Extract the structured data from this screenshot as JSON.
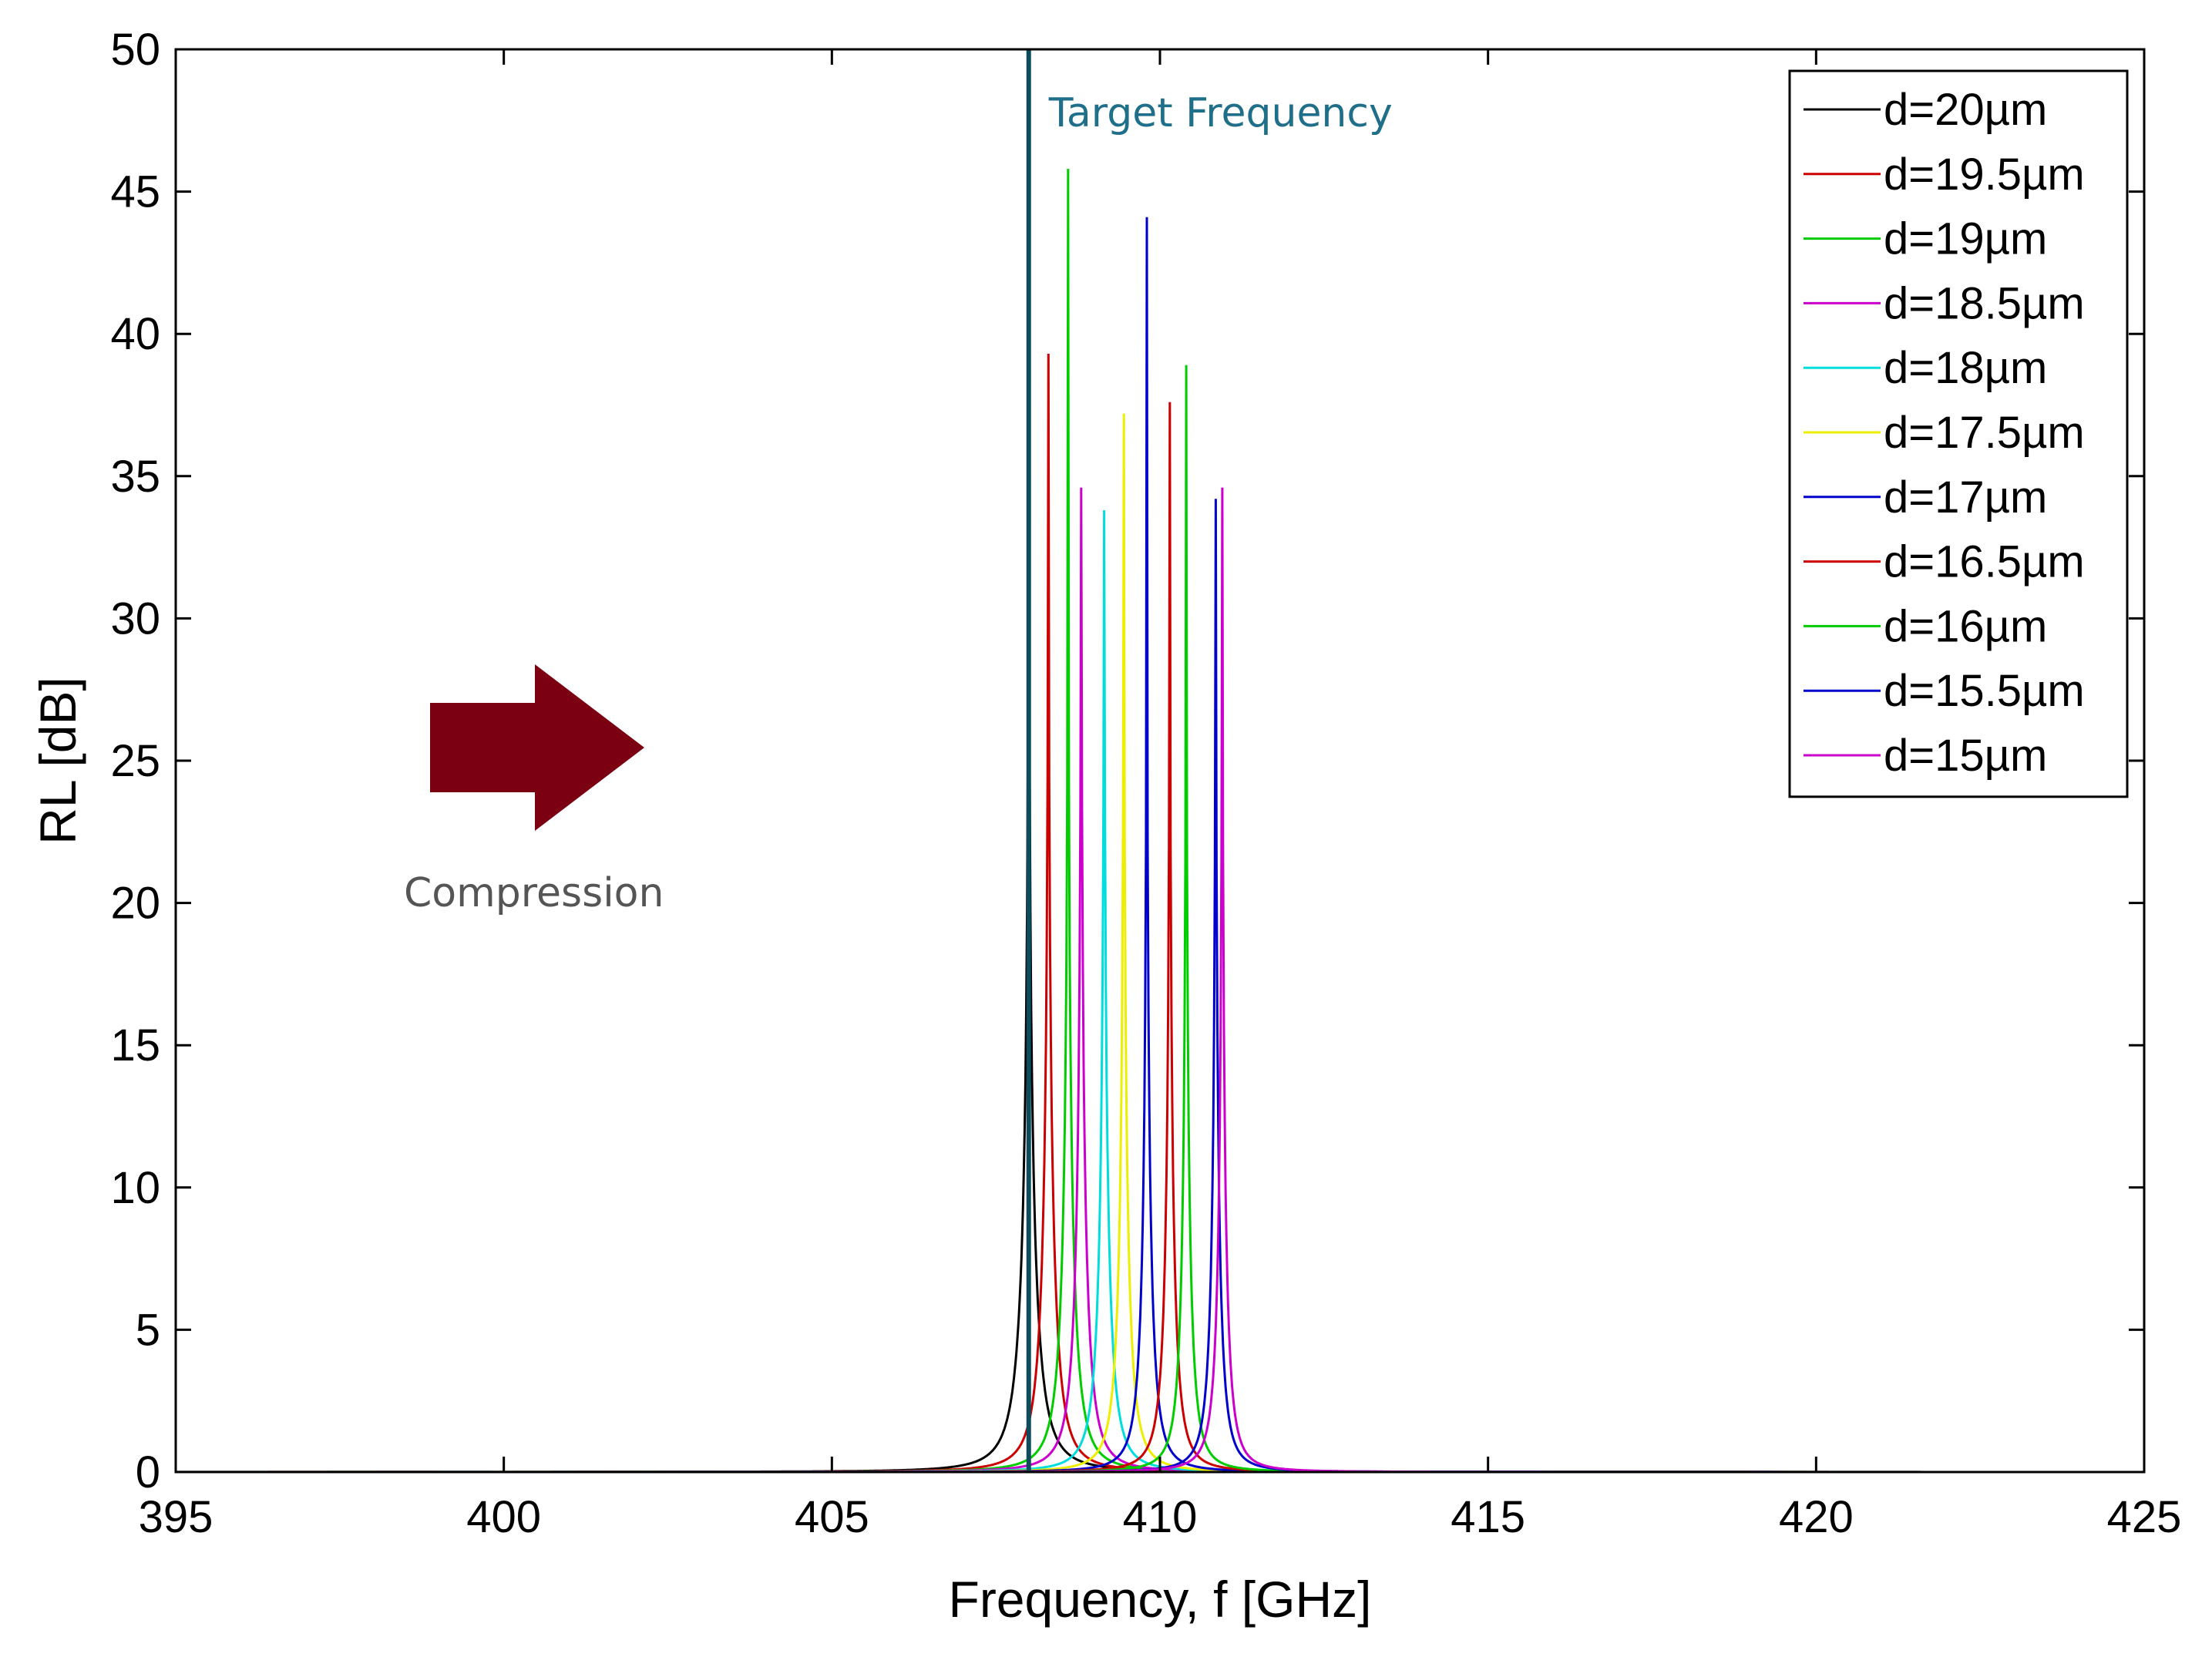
{
  "chart_data": {
    "type": "line",
    "title": "",
    "xlabel": "Frequency, f [GHz]",
    "ylabel": "RL [dB]",
    "xlim": [
      395,
      425
    ],
    "ylim": [
      0,
      50
    ],
    "xticks": [
      395,
      400,
      405,
      410,
      415,
      420,
      425
    ],
    "yticks": [
      0,
      5,
      10,
      15,
      20,
      25,
      30,
      35,
      40,
      45,
      50
    ],
    "grid": false,
    "legend_position": "top-right",
    "series": [
      {
        "name": "d=20µm",
        "color": "#000000",
        "f0": 408.0,
        "peak": 50.0,
        "width": 0.24
      },
      {
        "name": "d=19.5µm",
        "color": "#cc0000",
        "f0": 408.3,
        "peak": 39.3,
        "width": 0.21
      },
      {
        "name": "d=19µm",
        "color": "#00cc00",
        "f0": 408.6,
        "peak": 45.8,
        "width": 0.2
      },
      {
        "name": "d=18.5µm",
        "color": "#cc00cc",
        "f0": 408.8,
        "peak": 34.6,
        "width": 0.19
      },
      {
        "name": "d=18µm",
        "color": "#00dddd",
        "f0": 409.15,
        "peak": 33.8,
        "width": 0.18
      },
      {
        "name": "d=17.5µm",
        "color": "#eeee00",
        "f0": 409.45,
        "peak": 37.2,
        "width": 0.17
      },
      {
        "name": "d=17µm",
        "color": "#0000cc",
        "f0": 409.8,
        "peak": 44.1,
        "width": 0.16
      },
      {
        "name": "d=16.5µm",
        "color": "#cc0000",
        "f0": 410.15,
        "peak": 37.6,
        "width": 0.16
      },
      {
        "name": "d=16µm",
        "color": "#00cc00",
        "f0": 410.4,
        "peak": 38.9,
        "width": 0.15
      },
      {
        "name": "d=15.5µm",
        "color": "#0000cc",
        "f0": 410.85,
        "peak": 34.2,
        "width": 0.15
      },
      {
        "name": "d=15µm",
        "color": "#cc00cc",
        "f0": 410.95,
        "peak": 34.6,
        "width": 0.15
      }
    ],
    "target_frequency": {
      "x": 408.0,
      "label": "Target Frequency",
      "color": "#0e4c5c",
      "text_color": "#1f6f8b"
    },
    "compression_arrow": {
      "label": "Compression",
      "color": "#7a0012",
      "text_color": "#555555",
      "direction": "right"
    }
  }
}
